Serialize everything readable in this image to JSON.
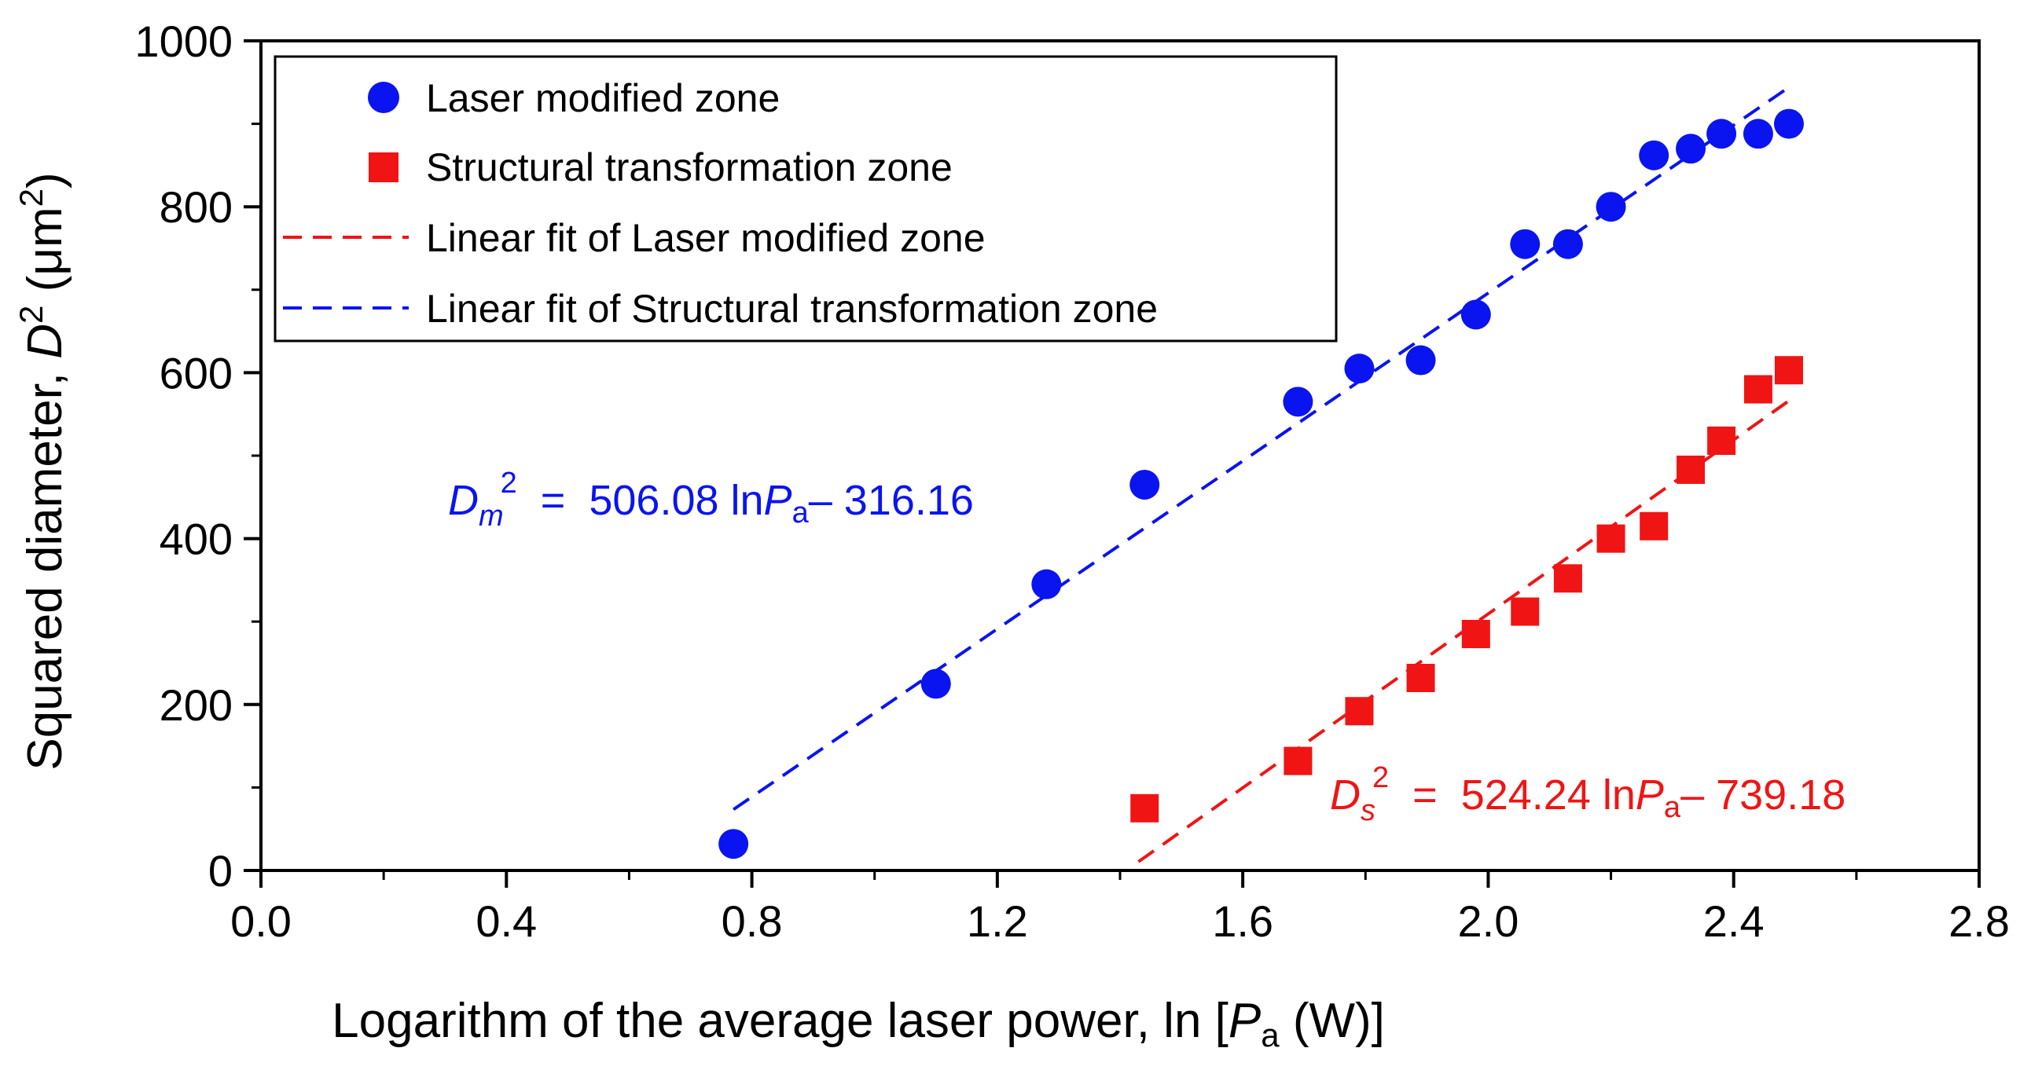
{
  "chart_data": {
    "type": "scatter",
    "xlabel": {
      "main": "Logarithm of the average laser power, ln [",
      "var": "P",
      "sub": "a",
      "unit": " (W)]"
    },
    "ylabel": {
      "main": "Squared diameter, ",
      "var": "D",
      "sup": "2",
      "unit_open": " (μm",
      "unit_sup": "2",
      "unit_close": ")"
    },
    "xlim": [
      0.0,
      2.8
    ],
    "ylim": [
      0,
      1000
    ],
    "xticks": [
      "0.0",
      "0.4",
      "0.8",
      "1.2",
      "1.6",
      "2.0",
      "2.4",
      "2.8"
    ],
    "yticks": [
      "0",
      "200",
      "400",
      "600",
      "800",
      "1000"
    ],
    "xtick_values": [
      0.0,
      0.4,
      0.8,
      1.2,
      1.6,
      2.0,
      2.4,
      2.8
    ],
    "ytick_values": [
      0,
      200,
      400,
      600,
      800,
      1000
    ],
    "series": [
      {
        "name": "Laser modified zone",
        "marker": "circle",
        "color": "#0a14f0",
        "x": [
          0.77,
          1.1,
          1.28,
          1.44,
          1.69,
          1.79,
          1.89,
          1.98,
          2.06,
          2.13,
          2.2,
          2.27,
          2.33,
          2.38,
          2.44,
          2.49
        ],
        "y": [
          32,
          225,
          345,
          465,
          565,
          605,
          615,
          670,
          755,
          755,
          800,
          862,
          870,
          888,
          888,
          900
        ]
      },
      {
        "name": "Structural transformation zone",
        "marker": "square",
        "color": "#f01414",
        "x": [
          1.44,
          1.69,
          1.79,
          1.89,
          1.98,
          2.06,
          2.13,
          2.2,
          2.27,
          2.33,
          2.38,
          2.44,
          2.49
        ],
        "y": [
          75,
          132,
          192,
          232,
          285,
          312,
          352,
          400,
          415,
          483,
          518,
          580,
          603
        ]
      }
    ],
    "fits": [
      {
        "name": "Linear fit of Laser modified zone",
        "style": "dashed",
        "color": "#f01414",
        "slope": 524.24,
        "intercept": -739.18,
        "x_range": [
          1.43,
          2.49
        ]
      },
      {
        "name": "Linear fit of Structural transformation zone",
        "style": "dashed",
        "color": "#0a14f0",
        "slope": 506.08,
        "intercept": -316.16,
        "x_range": [
          0.77,
          2.49
        ]
      }
    ],
    "legend": {
      "position": "top-left",
      "entries": [
        "Laser modified zone",
        "Structural transformation zone",
        "Linear fit of Laser modified zone",
        "Linear fit of Structural transformation zone"
      ]
    },
    "annotations": [
      {
        "id": "blue-eq",
        "color": "#0a14f0",
        "var": "D",
        "sub": "m",
        "sup": "2",
        "middle": "  =  506.08 ln",
        "pvar": "P",
        "psub": "a",
        "tail": "– 316.16"
      },
      {
        "id": "red-eq",
        "color": "#f01414",
        "var": "D",
        "sub": "s",
        "sup": "2",
        "middle": "  =  524.24 ln",
        "pvar": "P",
        "psub": "a",
        "tail": "– 739.18"
      }
    ]
  }
}
